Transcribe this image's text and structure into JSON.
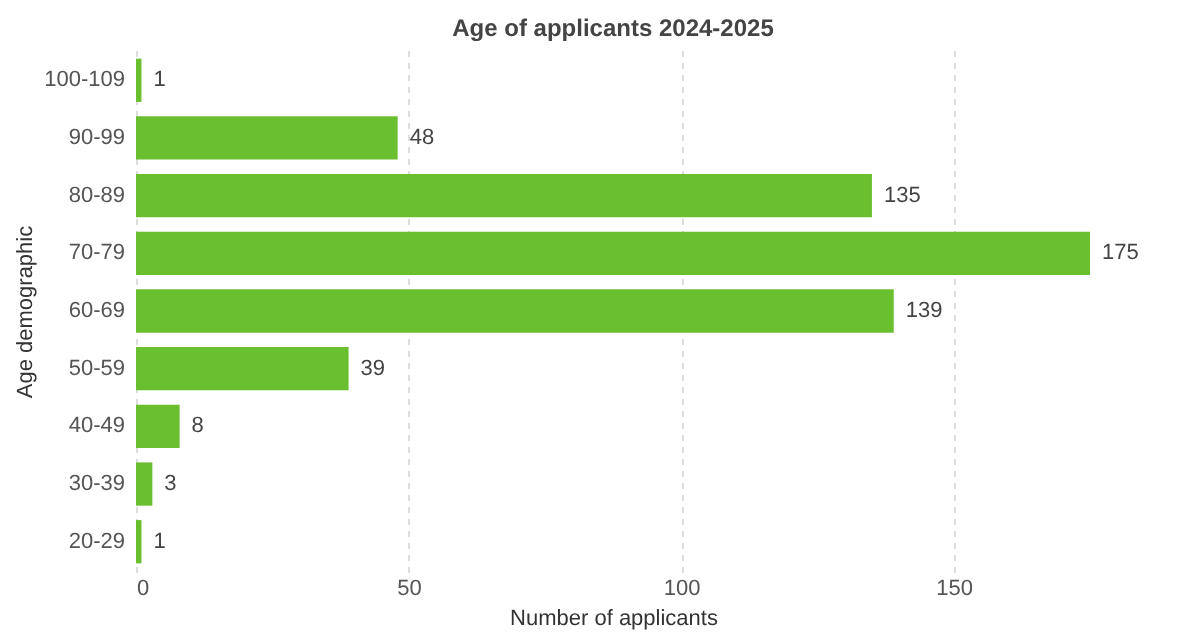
{
  "chart_data": {
    "type": "bar",
    "orientation": "horizontal",
    "title": "Age of applicants 2024-2025",
    "xlabel": "Number of applicants",
    "ylabel": "Age demographic",
    "categories": [
      "100-109",
      "90-99",
      "80-89",
      "70-79",
      "60-69",
      "50-59",
      "40-49",
      "30-39",
      "20-29"
    ],
    "values": [
      1,
      48,
      135,
      175,
      139,
      39,
      8,
      3,
      1
    ],
    "color": "#6abf2f",
    "xlim": [
      0,
      175
    ],
    "xticks": [
      0,
      50,
      100,
      150
    ],
    "grid": "x",
    "data_labels": true
  }
}
